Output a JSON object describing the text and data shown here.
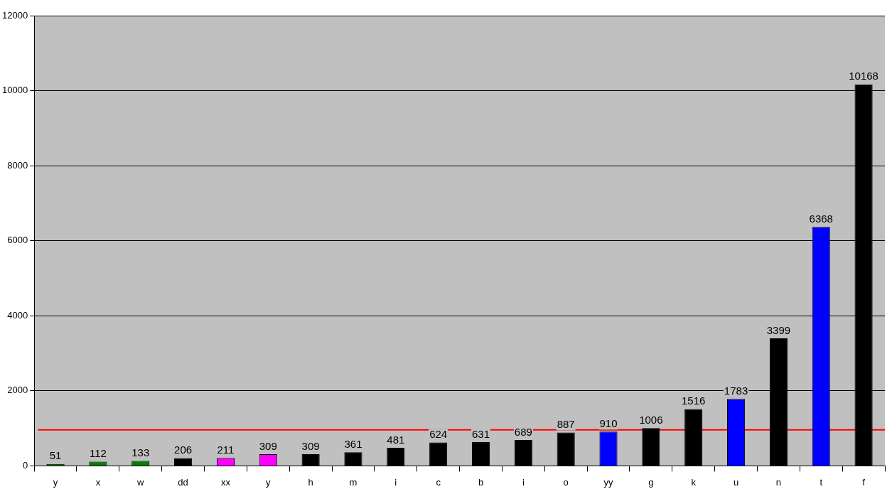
{
  "chart_data": {
    "type": "bar",
    "categories": [
      "y",
      "x",
      "w",
      "dd",
      "xx",
      "y",
      "h",
      "m",
      "i",
      "c",
      "b",
      "i",
      "o",
      "yy",
      "g",
      "k",
      "u",
      "n",
      "t",
      "f"
    ],
    "values": [
      51,
      112,
      133,
      206,
      211,
      309,
      309,
      361,
      481,
      624,
      631,
      689,
      887,
      910,
      1006,
      1516,
      1783,
      3399,
      6368,
      10168
    ],
    "colors": [
      "#008000",
      "#008000",
      "#008000",
      "#000000",
      "#ff00ff",
      "#ff00ff",
      "#000000",
      "#000000",
      "#000000",
      "#000000",
      "#000000",
      "#000000",
      "#000000",
      "#0000ff",
      "#000000",
      "#000000",
      "#0000ff",
      "#000000",
      "#0000ff",
      "#000000"
    ],
    "ylim": [
      0,
      12000
    ],
    "yticks": [
      0,
      2000,
      4000,
      6000,
      8000,
      10000,
      12000
    ],
    "grid": "y",
    "data_labels": true,
    "ref_lines": [
      {
        "axis": "y",
        "value": 960,
        "color": "#ff0000"
      }
    ]
  }
}
